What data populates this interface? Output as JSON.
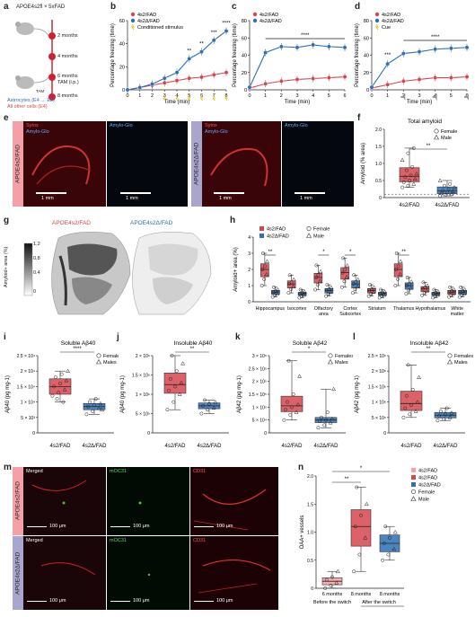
{
  "panel_letters": [
    "a",
    "b",
    "c",
    "d",
    "e",
    "f",
    "g",
    "h",
    "i",
    "j",
    "k",
    "l",
    "m",
    "n"
  ],
  "colors": {
    "red": "#d6454f",
    "blue": "#2e6fb5",
    "pink": "#f4a0a8",
    "lavender": "#a9a5cf",
    "darkred": "#a3122a"
  },
  "a": {
    "title": "APOE4s2fl × 5xFAD",
    "times": [
      "2 months",
      "4 months",
      "6 months",
      "8 months"
    ],
    "tam": "TAM (i.p.)",
    "tam2": "TAM",
    "astro": "Astrocytes (E4 → E2)",
    "other": "All other cells (E4)"
  },
  "b": {
    "legend": [
      "4s2/FAD",
      "4s2Δ/FAD",
      "Conditioned stimulus"
    ],
    "ylabel": "Percentage freezing (time)",
    "xlabel": "Time (min)",
    "yticks": [
      "0",
      "20",
      "40",
      "60"
    ],
    "xticks": [
      "0",
      "1",
      "2",
      "3",
      "4",
      "5",
      "6",
      "7",
      "8"
    ],
    "sig": [
      "**",
      "**",
      "***",
      "****"
    ]
  },
  "c": {
    "legend": [
      "4s2/FAD",
      "4s2Δ/FAD"
    ],
    "ylabel": "Percentage freezing (time)",
    "xlabel": "Time (min)",
    "yticks": [
      "0",
      "20",
      "40",
      "60",
      "80"
    ],
    "xticks": [
      "0",
      "1",
      "2",
      "3",
      "4",
      "5",
      "6"
    ],
    "sig": "****"
  },
  "d": {
    "legend": [
      "4s2/FAD",
      "4s2Δ/FAD",
      "Cue"
    ],
    "ylabel": "Percentage freezing (time)",
    "xlabel": "Time (min)",
    "yticks": [
      "0",
      "20",
      "40",
      "60",
      "80"
    ],
    "xticks": [
      "0",
      "1",
      "2",
      "3",
      "4",
      "5",
      "6"
    ],
    "sig": [
      "***",
      "****"
    ]
  },
  "e": {
    "row1": "APOE4s2/FAD",
    "row2": "APOE4s2Δ/FAD",
    "sytox": "Sytox",
    "amylo": "Amylo-Glo",
    "scale": "1 mm"
  },
  "f": {
    "title": "Total amyloid",
    "ylabel": "Amyloid (% area)",
    "yticks": [
      "0",
      "2.0",
      "1.5",
      "1.0",
      "0.5"
    ],
    "cats": [
      "4s2/FAD",
      "4s2Δ/FAD"
    ],
    "legend": [
      "Female",
      "Male"
    ],
    "sig": "**"
  },
  "g": {
    "labels": [
      "APOE4s2/FAD",
      "APOE4s2Δ/FAD"
    ],
    "cbar_label": "Amyloid+ area (%)",
    "cbar_ticks": [
      "1.2",
      "0.8",
      "0.4",
      "0"
    ]
  },
  "h": {
    "ylabel": "Amyloid+ area (%)",
    "legend": [
      "4s2/FAD",
      "4s2Δ/FAD",
      "Female",
      "Male"
    ],
    "regions": [
      "Hippocampus",
      "Isocortex",
      "Olfactory area",
      "Cortex Subcortex",
      "Striatum",
      "Thalamus",
      "Hypothalamus",
      "White matter"
    ],
    "yticks": [
      "0",
      "1",
      "2",
      "3",
      "4"
    ],
    "sig": [
      "**",
      "*",
      "*",
      "**"
    ]
  },
  "i": {
    "title": "Soluble Aβ40",
    "ylabel": "Aβ40 (pg mg-1)",
    "yticks": [
      "0",
      "5 × 10³",
      "1 × 10⁴",
      "1.5 × 10⁴",
      "2 × 10⁴",
      "2.5 × 10⁴"
    ],
    "cats": [
      "4s2/FAD",
      "4s2Δ/FAD"
    ],
    "legend": [
      "Females",
      "Males"
    ],
    "sig": "****"
  },
  "j": {
    "title": "Insoluble Aβ40",
    "ylabel": "Aβ40 (pg mg-1)",
    "yticks": [
      "0",
      "5 × 10⁵",
      "1 × 10⁶",
      "1.5 × 10⁶",
      "2 × 10⁶"
    ],
    "cats": [
      "4s2/FAD",
      "4s2Δ/FAD"
    ],
    "sig": "**"
  },
  "k": {
    "title": "Soluble Aβ42",
    "ylabel": "Aβ42 (pg mg-1)",
    "yticks": [
      "0",
      "5 × 10⁴",
      "1 × 10⁵",
      "1.5 × 10⁵",
      "2 × 10⁵",
      "2.5 × 10⁵",
      "3 × 10⁵"
    ],
    "cats": [
      "4s2/FAD",
      "4s2Δ/FAD"
    ],
    "legend": [
      "Females",
      "Males"
    ],
    "sig": "*"
  },
  "l": {
    "title": "Insoluble Aβ42",
    "ylabel": "Aβ42 (pg mg-1)",
    "yticks": [
      "0",
      "5 × 10⁵",
      "1 × 10⁶",
      "1.5 × 10⁶",
      "2 × 10⁶",
      "2.5 × 10⁶"
    ],
    "cats": [
      "4s2/FAD",
      "4s2Δ/FAD"
    ],
    "legend": [
      "Females",
      "Males"
    ],
    "sig": "**"
  },
  "m": {
    "row1": "APOE4s2/FAD",
    "row2": "APOE4s2Δ/FAD",
    "cols": [
      "Merged",
      "mOC31",
      "CD31"
    ],
    "scale": "100 μm"
  },
  "n": {
    "ylabel": "OAA+ vessels",
    "legend": [
      "4s2/FAD",
      "4s2/FAD",
      "4s2Δ/FAD",
      "Female",
      "Male"
    ],
    "cats": [
      "6 months",
      "8 months",
      "8 months"
    ],
    "before": "Before the switch",
    "after": "After the switch",
    "yticks": [
      "0",
      "0.5",
      "1.0",
      "1.5",
      "2.0"
    ],
    "sig": [
      "**",
      "*"
    ]
  },
  "chart_data": [
    {
      "panel": "b",
      "type": "line",
      "x": [
        0,
        1,
        2,
        3,
        4,
        5,
        6,
        7,
        8
      ],
      "series": [
        {
          "name": "4s2/FAD",
          "values": [
            0,
            2,
            4,
            6,
            8,
            10,
            11,
            13,
            15
          ]
        },
        {
          "name": "4s2Δ/FAD",
          "values": [
            0,
            2,
            5,
            10,
            15,
            27,
            33,
            43,
            51
          ]
        }
      ],
      "ylim": [
        0,
        60
      ]
    },
    {
      "panel": "c",
      "type": "line",
      "x": [
        0,
        1,
        2,
        3,
        4,
        5,
        6
      ],
      "series": [
        {
          "name": "4s2/FAD",
          "values": [
            2,
            7,
            10,
            12,
            13,
            14,
            15
          ]
        },
        {
          "name": "4s2Δ/FAD",
          "values": [
            3,
            43,
            50,
            49,
            52,
            50,
            49
          ]
        }
      ],
      "ylim": [
        0,
        80
      ]
    },
    {
      "panel": "d",
      "type": "line",
      "x": [
        0,
        1,
        2,
        3,
        4,
        5,
        6
      ],
      "series": [
        {
          "name": "4s2/FAD",
          "values": [
            2,
            6,
            10,
            12,
            14,
            14,
            15
          ]
        },
        {
          "name": "4s2Δ/FAD",
          "values": [
            3,
            30,
            42,
            44,
            47,
            48,
            49
          ]
        }
      ],
      "ylim": [
        0,
        80
      ]
    },
    {
      "panel": "f",
      "type": "box",
      "categories": [
        "4s2/FAD",
        "4s2Δ/FAD"
      ],
      "series": [
        {
          "name": "4s2/FAD",
          "values": [
            0.3,
            0.35,
            0.4,
            0.45,
            0.5,
            0.55,
            0.6,
            0.65,
            0.7,
            0.8,
            0.9,
            1.1,
            1.3,
            1.45
          ]
        },
        {
          "name": "4s2Δ/FAD",
          "values": [
            0.05,
            0.08,
            0.1,
            0.12,
            0.15,
            0.18,
            0.2,
            0.25,
            0.3,
            0.35,
            0.4,
            0.5
          ]
        }
      ],
      "ylim": [
        0,
        2.0
      ]
    },
    {
      "panel": "h",
      "type": "box",
      "categories": [
        "Hippocampus",
        "Isocortex",
        "Olfactory area",
        "Cortex Subcortex",
        "Striatum",
        "Thalamus",
        "Hypothalamus",
        "White matter"
      ],
      "series": [
        {
          "name": "4s2/FAD",
          "values": [
            2.0,
            1.1,
            1.5,
            1.8,
            0.7,
            2.0,
            0.8,
            0.6
          ]
        },
        {
          "name": "4s2Δ/FAD",
          "values": [
            0.6,
            0.5,
            0.7,
            1.1,
            0.5,
            1.0,
            0.5,
            0.6
          ]
        }
      ],
      "ylim": [
        0,
        4
      ]
    },
    {
      "panel": "i",
      "type": "box",
      "categories": [
        "4s2/FAD",
        "4s2Δ/FAD"
      ],
      "series": [
        {
          "name": "4s2/FAD",
          "values": [
            12000,
            13000,
            14000,
            15000,
            16000,
            17000,
            18000,
            19000,
            20000,
            11000,
            10000
          ]
        },
        {
          "name": "4s2Δ/FAD",
          "values": [
            6000,
            7000,
            8000,
            8500,
            9000,
            9500,
            10000,
            11000,
            7500
          ]
        }
      ],
      "ylim": [
        0,
        25000
      ]
    },
    {
      "panel": "j",
      "type": "box",
      "categories": [
        "4s2/FAD",
        "4s2Δ/FAD"
      ],
      "series": [
        {
          "name": "4s2/FAD",
          "values": [
            600000,
            800000,
            1000000,
            1100000,
            1200000,
            1300000,
            1400000,
            1600000,
            1800000,
            2000000
          ]
        },
        {
          "name": "4s2Δ/FAD",
          "values": [
            500000,
            600000,
            650000,
            700000,
            750000,
            800000,
            850000
          ]
        }
      ],
      "ylim": [
        0,
        2000000
      ]
    },
    {
      "panel": "k",
      "type": "box",
      "categories": [
        "4s2/FAD",
        "4s2Δ/FAD"
      ],
      "series": [
        {
          "name": "4s2/FAD",
          "values": [
            50000,
            70000,
            80000,
            90000,
            100000,
            110000,
            120000,
            150000,
            220000,
            280000
          ]
        },
        {
          "name": "4s2Δ/FAD",
          "values": [
            20000,
            30000,
            40000,
            45000,
            50000,
            55000,
            60000,
            80000,
            170000
          ]
        }
      ],
      "ylim": [
        0,
        300000
      ]
    },
    {
      "panel": "l",
      "type": "box",
      "categories": [
        "4s2/FAD",
        "4s2Δ/FAD"
      ],
      "series": [
        {
          "name": "4s2/FAD",
          "values": [
            500000,
            600000,
            700000,
            800000,
            900000,
            1000000,
            1200000,
            1400000,
            1800000,
            2200000
          ]
        },
        {
          "name": "4s2Δ/FAD",
          "values": [
            400000,
            450000,
            500000,
            550000,
            600000,
            650000,
            700000,
            800000
          ]
        }
      ],
      "ylim": [
        0,
        2500000
      ]
    },
    {
      "panel": "n",
      "type": "box",
      "categories": [
        "6 months",
        "8 months",
        "8 months"
      ],
      "series": [
        {
          "name": "6 months 4s2/FAD",
          "values": [
            0.0,
            0.05,
            0.1,
            0.15,
            0.2,
            0.3
          ]
        },
        {
          "name": "8 months 4s2/FAD",
          "values": [
            0.3,
            0.6,
            0.9,
            1.1,
            1.3,
            1.5,
            1.8
          ]
        },
        {
          "name": "8 months 4s2Δ/FAD",
          "values": [
            0.5,
            0.6,
            0.7,
            0.8,
            0.9,
            1.0,
            1.1
          ]
        }
      ],
      "ylim": [
        0,
        2.0
      ]
    }
  ]
}
